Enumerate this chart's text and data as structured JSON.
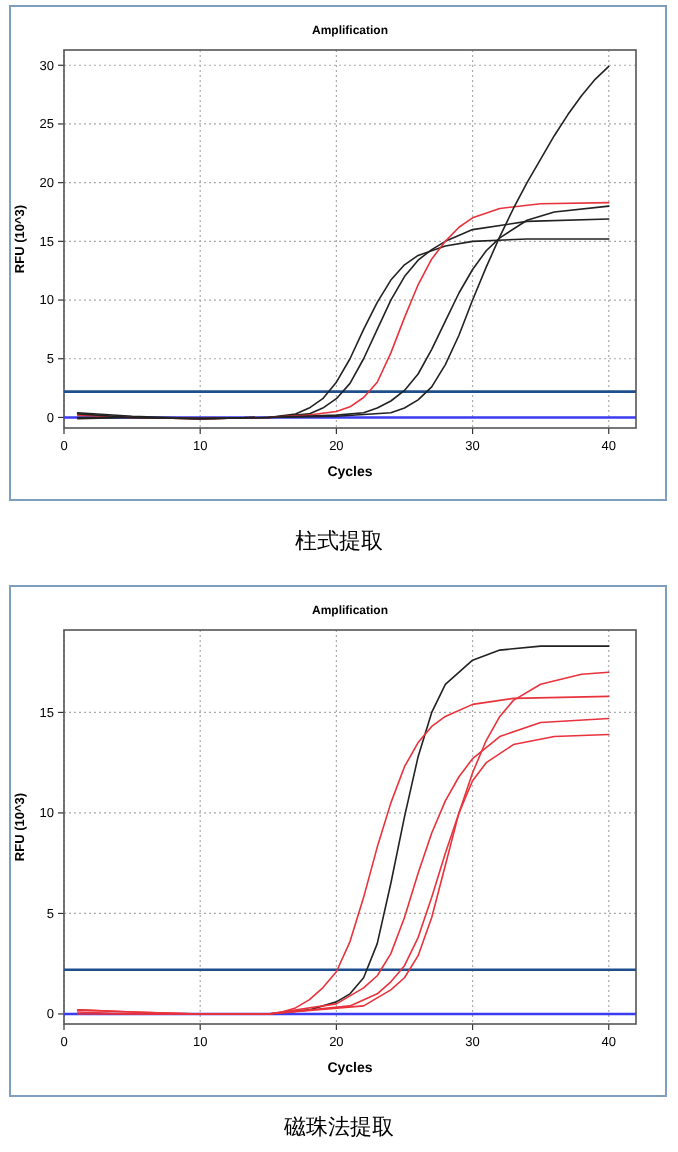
{
  "chart_data": [
    {
      "type": "line",
      "title": "Amplification",
      "xlabel": "Cycles",
      "ylabel": "RFU (10^3)",
      "annotations": [
        "柱式提取"
      ],
      "xlim": [
        0,
        42
      ],
      "ylim": [
        -0.9,
        31.3
      ],
      "xticks": [
        0,
        10,
        20,
        30,
        40
      ],
      "yticks": [
        0,
        5,
        10,
        15,
        20,
        25,
        30
      ],
      "grid": true,
      "ref_lines": [
        {
          "axis": "y",
          "value": 2.2,
          "color": "#1f4e8c"
        },
        {
          "axis": "y",
          "value": 0,
          "color": "#3b3bf0"
        }
      ],
      "series": [
        {
          "color": "#222222",
          "x": [
            1,
            5,
            10,
            15,
            17,
            18,
            19,
            20,
            21,
            22,
            23,
            24,
            25,
            26,
            28,
            30,
            34,
            40
          ],
          "values": [
            0.4,
            0.1,
            -0.1,
            0,
            0.3,
            0.8,
            1.6,
            3.0,
            5.0,
            7.5,
            9.8,
            11.7,
            13.0,
            13.8,
            14.6,
            15.0,
            15.2,
            15.2
          ]
        },
        {
          "color": "#222222",
          "x": [
            1,
            5,
            10,
            15,
            18,
            19,
            20,
            21,
            22,
            23,
            24,
            25,
            26,
            27,
            28,
            30,
            34,
            40
          ],
          "values": [
            -0.1,
            0,
            -0.1,
            0,
            0.3,
            0.8,
            1.6,
            2.9,
            5.0,
            7.5,
            10.0,
            12.0,
            13.4,
            14.3,
            15.0,
            16.0,
            16.7,
            16.9
          ]
        },
        {
          "color": "#e8323c",
          "x": [
            1,
            5,
            10,
            15,
            18,
            20,
            21,
            22,
            23,
            24,
            25,
            26,
            27,
            28,
            29,
            30,
            32,
            35,
            40
          ],
          "values": [
            0.2,
            0,
            -0.1,
            0,
            0.2,
            0.5,
            0.9,
            1.7,
            3.0,
            5.5,
            8.5,
            11.3,
            13.5,
            15.0,
            16.2,
            17.0,
            17.8,
            18.2,
            18.3
          ]
        },
        {
          "color": "#222222",
          "x": [
            1,
            5,
            10,
            15,
            20,
            22,
            23,
            24,
            25,
            26,
            27,
            28,
            29,
            30,
            31,
            32,
            34,
            36,
            40
          ],
          "values": [
            0.3,
            0,
            -0.1,
            0,
            0.2,
            0.4,
            0.8,
            1.4,
            2.3,
            3.7,
            5.8,
            8.2,
            10.6,
            12.6,
            14.2,
            15.3,
            16.8,
            17.5,
            18.0
          ]
        },
        {
          "color": "#222222",
          "x": [
            1,
            5,
            10,
            15,
            20,
            24,
            25,
            26,
            27,
            28,
            29,
            30,
            31,
            32,
            33,
            34,
            35,
            36,
            37,
            38,
            39,
            40
          ],
          "values": [
            0,
            0,
            -0.1,
            0,
            0.1,
            0.4,
            0.8,
            1.5,
            2.6,
            4.5,
            7.0,
            10.0,
            12.8,
            15.4,
            17.8,
            20.0,
            22.0,
            24.0,
            25.8,
            27.4,
            28.8,
            29.9
          ]
        }
      ]
    },
    {
      "type": "line",
      "title": "Amplification",
      "xlabel": "Cycles",
      "ylabel": "RFU (10^3)",
      "annotations": [
        "磁珠法提取"
      ],
      "xlim": [
        0,
        42
      ],
      "ylim": [
        -0.5,
        19.1
      ],
      "xticks": [
        0,
        10,
        20,
        30,
        40
      ],
      "yticks": [
        0,
        5,
        10,
        15
      ],
      "grid": true,
      "ref_lines": [
        {
          "axis": "y",
          "value": 2.2,
          "color": "#1f4e8c"
        },
        {
          "axis": "y",
          "value": 0,
          "color": "#3b3bf0"
        }
      ],
      "series": [
        {
          "color": "#222222",
          "x": [
            15,
            18,
            20,
            21,
            22,
            23,
            24,
            25,
            26,
            27,
            28,
            30,
            32,
            35,
            40
          ],
          "values": [
            0,
            0.2,
            0.6,
            1.0,
            1.8,
            3.5,
            6.5,
            9.8,
            12.8,
            15.0,
            16.4,
            17.6,
            18.1,
            18.3,
            18.3
          ]
        },
        {
          "color": "#e8323c",
          "x": [
            1,
            5,
            10,
            15,
            16,
            17,
            18,
            19,
            20,
            21,
            22,
            23,
            24,
            25,
            26,
            27,
            28,
            30,
            33,
            40
          ],
          "values": [
            0.2,
            0.1,
            0,
            0,
            0.1,
            0.3,
            0.7,
            1.3,
            2.1,
            3.6,
            5.8,
            8.3,
            10.5,
            12.3,
            13.5,
            14.3,
            14.8,
            15.4,
            15.7,
            15.8
          ]
        },
        {
          "color": "#e8323c",
          "x": [
            1,
            5,
            10,
            15,
            20,
            22,
            23,
            24,
            25,
            26,
            27,
            28,
            29,
            30,
            32,
            35,
            40
          ],
          "values": [
            0.1,
            0,
            0,
            0,
            0.5,
            1.3,
            1.9,
            3.0,
            4.8,
            7.0,
            9.0,
            10.6,
            11.8,
            12.7,
            13.8,
            14.5,
            14.7
          ]
        },
        {
          "color": "#e8323c",
          "x": [
            1,
            5,
            10,
            15,
            21,
            23,
            24,
            25,
            26,
            27,
            28,
            29,
            30,
            31,
            33,
            36,
            40
          ],
          "values": [
            0.2,
            0.1,
            0,
            0,
            0.4,
            1.0,
            1.6,
            2.4,
            3.8,
            5.8,
            8.0,
            10.0,
            11.6,
            12.5,
            13.4,
            13.8,
            13.9
          ]
        },
        {
          "color": "#e8323c",
          "x": [
            1,
            5,
            10,
            15,
            22,
            24,
            25,
            26,
            27,
            28,
            29,
            30,
            31,
            32,
            33,
            35,
            38,
            40
          ],
          "values": [
            0,
            0,
            0,
            0,
            0.4,
            1.2,
            1.8,
            2.9,
            4.8,
            7.4,
            10.0,
            12.0,
            13.6,
            14.8,
            15.6,
            16.4,
            16.9,
            17.0
          ]
        }
      ]
    }
  ]
}
